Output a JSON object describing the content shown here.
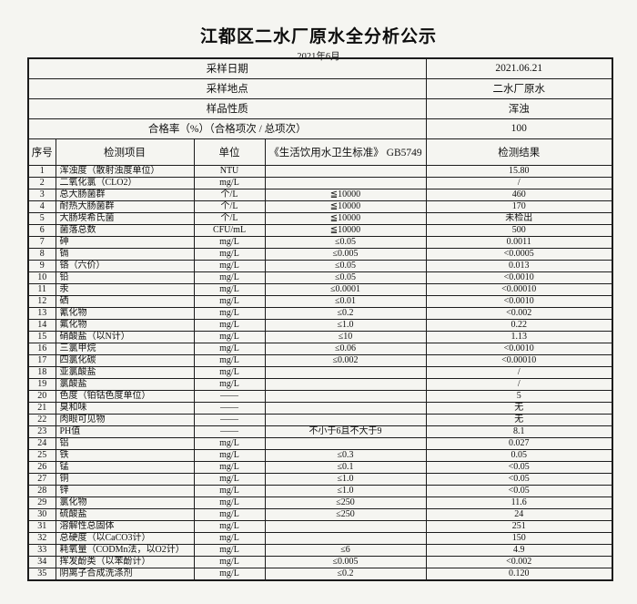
{
  "page": {
    "title": "江都区二水厂原水全分析公示",
    "subtitle": "2021年6月"
  },
  "info_rows": [
    {
      "label": "采样日期",
      "value": "2021.06.21"
    },
    {
      "label": "采样地点",
      "value": "二水厂原水"
    },
    {
      "label": "样品性质",
      "value": "浑浊"
    },
    {
      "label": "合格率（%）（合格项次 / 总项次）",
      "value": "100"
    }
  ],
  "columns": [
    "序号",
    "检测项目",
    "单位",
    "《生活饮用水卫生标准》 GB5749",
    "检测结果"
  ],
  "rows": [
    {
      "no": "1",
      "item": "浑浊度（散射浊度单位）",
      "unit": "NTU",
      "standard": "",
      "result": "15.80"
    },
    {
      "no": "2",
      "item": "二氧化氯（CLO2）",
      "unit": "mg/L",
      "standard": "",
      "result": "/"
    },
    {
      "no": "3",
      "item": "总大肠菌群",
      "unit": "个/L",
      "standard": "≦10000",
      "result": "460"
    },
    {
      "no": "4",
      "item": "耐热大肠菌群",
      "unit": "个/L",
      "standard": "≦10000",
      "result": "170"
    },
    {
      "no": "5",
      "item": "大肠埃希氏菌",
      "unit": "个/L",
      "standard": "≦10000",
      "result": "未检出"
    },
    {
      "no": "6",
      "item": "菌落总数",
      "unit": "CFU/mL",
      "standard": "≦10000",
      "result": "500"
    },
    {
      "no": "7",
      "item": "砷",
      "unit": "mg/L",
      "standard": "≤0.05",
      "result": "0.0011"
    },
    {
      "no": "8",
      "item": "镉",
      "unit": "mg/L",
      "standard": "≤0.005",
      "result": "<0.0005"
    },
    {
      "no": "9",
      "item": "铬（六价）",
      "unit": "mg/L",
      "standard": "≤0.05",
      "result": "0.013"
    },
    {
      "no": "10",
      "item": "铅",
      "unit": "mg/L",
      "standard": "≤0.05",
      "result": "<0.0010"
    },
    {
      "no": "11",
      "item": "汞",
      "unit": "mg/L",
      "standard": "≤0.0001",
      "result": "<0.00010"
    },
    {
      "no": "12",
      "item": "硒",
      "unit": "mg/L",
      "standard": "≤0.01",
      "result": "<0.0010"
    },
    {
      "no": "13",
      "item": "氰化物",
      "unit": "mg/L",
      "standard": "≤0.2",
      "result": "<0.002"
    },
    {
      "no": "14",
      "item": "氟化物",
      "unit": "mg/L",
      "standard": "≤1.0",
      "result": "0.22"
    },
    {
      "no": "15",
      "item": "硝酸盐（以N计）",
      "unit": "mg/L",
      "standard": "≤10",
      "result": "1.13"
    },
    {
      "no": "16",
      "item": "三氯甲烷",
      "unit": "mg/L",
      "standard": "≤0.06",
      "result": "<0.0010"
    },
    {
      "no": "17",
      "item": "四氯化碳",
      "unit": "mg/L",
      "standard": "≤0.002",
      "result": "<0.00010"
    },
    {
      "no": "18",
      "item": "亚氯酸盐",
      "unit": "mg/L",
      "standard": "",
      "result": "/"
    },
    {
      "no": "19",
      "item": "氯酸盐",
      "unit": "mg/L",
      "standard": "",
      "result": "/"
    },
    {
      "no": "20",
      "item": "色度（铂钴色度单位）",
      "unit": "——",
      "standard": "",
      "result": "5"
    },
    {
      "no": "21",
      "item": "臭和味",
      "unit": "——",
      "standard": "",
      "result": "无"
    },
    {
      "no": "22",
      "item": "肉眼可见物",
      "unit": "——",
      "standard": "",
      "result": "无"
    },
    {
      "no": "23",
      "item": "PH值",
      "unit": "——",
      "standard": "不小于6且不大于9",
      "result": "8.1"
    },
    {
      "no": "24",
      "item": "铝",
      "unit": "mg/L",
      "standard": "",
      "result": "0.027"
    },
    {
      "no": "25",
      "item": "铁",
      "unit": "mg/L",
      "standard": "≤0.3",
      "result": "0.05"
    },
    {
      "no": "26",
      "item": "锰",
      "unit": "mg/L",
      "standard": "≤0.1",
      "result": "<0.05"
    },
    {
      "no": "27",
      "item": "铜",
      "unit": "mg/L",
      "standard": "≤1.0",
      "result": "<0.05"
    },
    {
      "no": "28",
      "item": "锌",
      "unit": "mg/L",
      "standard": "≤1.0",
      "result": "<0.05"
    },
    {
      "no": "29",
      "item": "氯化物",
      "unit": "mg/L",
      "standard": "≤250",
      "result": "11.6"
    },
    {
      "no": "30",
      "item": "硫酸盐",
      "unit": "mg/L",
      "standard": "≤250",
      "result": "24"
    },
    {
      "no": "31",
      "item": "溶解性总固体",
      "unit": "mg/L",
      "standard": "",
      "result": "251"
    },
    {
      "no": "32",
      "item": "总硬度（以CaCO3计）",
      "unit": "mg/L",
      "standard": "",
      "result": "150"
    },
    {
      "no": "33",
      "item": "耗氧量（CODMn法，以O2计）",
      "unit": "mg/L",
      "standard": "≤6",
      "result": "4.9"
    },
    {
      "no": "34",
      "item": "挥发酚类（以苯酚计）",
      "unit": "mg/L",
      "standard": "≤0.005",
      "result": "<0.002"
    },
    {
      "no": "35",
      "item": "阴离子合成洗涤剂",
      "unit": "mg/L",
      "standard": "≤0.2",
      "result": "0.120"
    }
  ]
}
